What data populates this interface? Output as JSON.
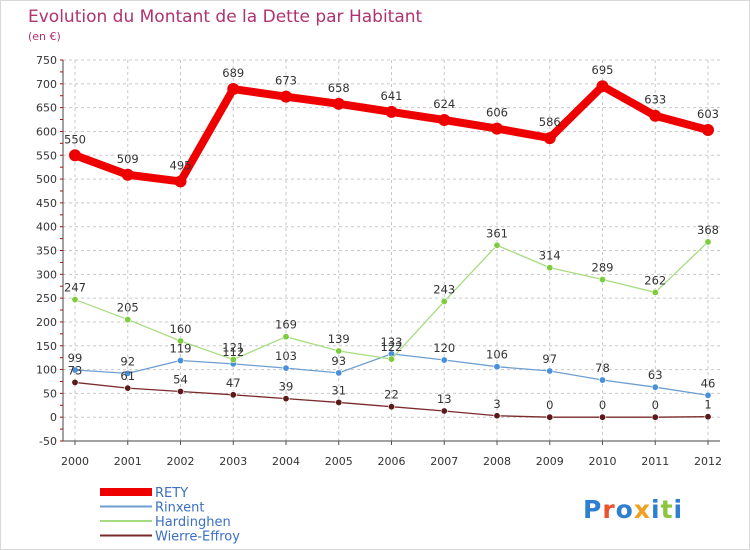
{
  "title": "Evolution du Montant de la Dette par Habitant",
  "subtitle": "(en €)",
  "logo": "Proxiti",
  "colors": {
    "title": "#b0326e",
    "grid": "#c8c8c8",
    "axis_tick_marks": "#cc0000"
  },
  "chart_data": {
    "type": "line",
    "title": "Evolution du Montant de la Dette par Habitant",
    "subtitle": "(en €)",
    "x": [
      "2000",
      "2001",
      "2002",
      "2003",
      "2004",
      "2005",
      "2006",
      "2007",
      "2008",
      "2009",
      "2010",
      "2011",
      "2012"
    ],
    "ylim": [
      -50,
      750
    ],
    "yticks": [
      "-50",
      "0",
      "50",
      "100",
      "150",
      "200",
      "250",
      "300",
      "350",
      "400",
      "450",
      "500",
      "550",
      "600",
      "650",
      "700",
      "750"
    ],
    "grid": "dashed",
    "legend_position": "bottom-left",
    "series": [
      {
        "name": "RETY",
        "color": "#ee0000",
        "marker": "#ee0000",
        "width": 8,
        "values": [
          550,
          509,
          495,
          689,
          673,
          658,
          641,
          624,
          606,
          586,
          695,
          633,
          603
        ]
      },
      {
        "name": "Rinxent",
        "color": "#6e9fd1",
        "marker": "#4a90d9",
        "width": 1.3,
        "values": [
          99,
          92,
          119,
          112,
          103,
          93,
          133,
          120,
          106,
          97,
          78,
          63,
          46
        ]
      },
      {
        "name": "Hardinghen",
        "color": "#a6dc80",
        "marker": "#7ccc3c",
        "width": 1.3,
        "values": [
          247,
          205,
          160,
          121,
          169,
          139,
          122,
          243,
          361,
          314,
          289,
          262,
          368
        ]
      },
      {
        "name": "Wierre-Effroy",
        "color": "#7a2a2a",
        "marker": "#5a1a1a",
        "width": 1.3,
        "values": [
          73,
          61,
          54,
          47,
          39,
          31,
          22,
          13,
          3,
          0,
          0,
          0,
          1
        ]
      }
    ]
  }
}
